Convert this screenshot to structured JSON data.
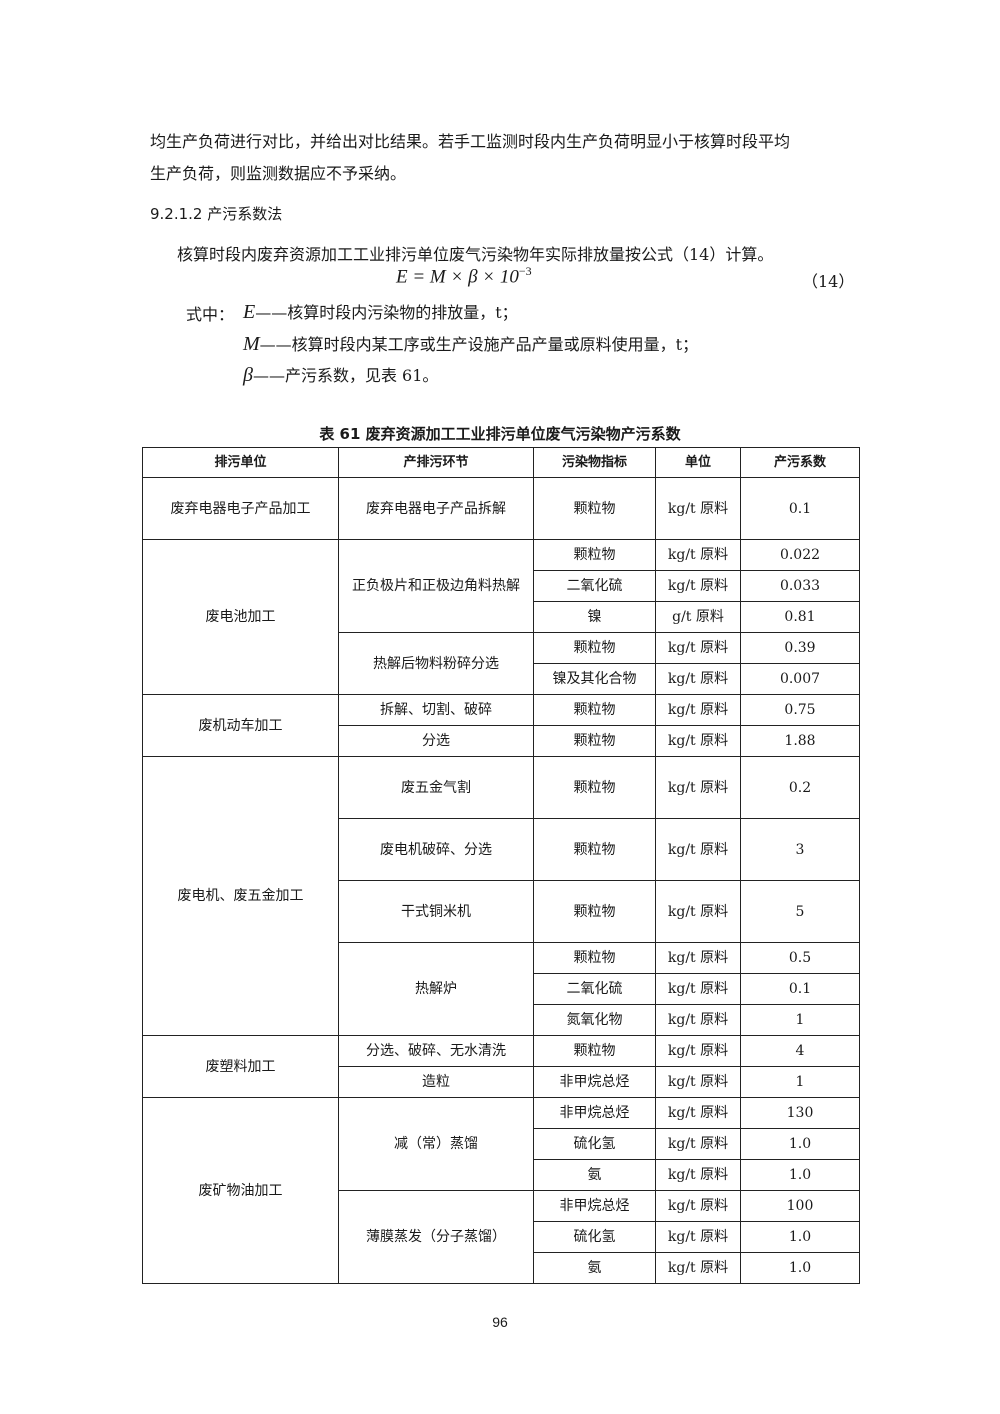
{
  "paragraph1_line1": "均生产负荷进行对比，并给出对比结果。若手工监测时段内生产负荷明显小于核算时段平均",
  "paragraph1_line2": "生产负荷，则监测数据应不予采纳。",
  "section_heading": "9.2.1.2 产污系数法",
  "paragraph2": "核算时段内废弃资源加工工业排污单位废气污染物年实际排放量按公式（14）计算。",
  "formula": {
    "lhs": "E",
    "eq": " = M × β × 10",
    "exp": "−3",
    "number": "（14）"
  },
  "where": {
    "prefix": "式中：",
    "items": [
      {
        "symbol": "E",
        "desc": "——核算时段内污染物的排放量，t；"
      },
      {
        "symbol": "M",
        "desc": "——核算时段内某工序或生产设施产品产量或原料使用量，t；"
      },
      {
        "symbol": "β",
        "desc": "——产污系数，见表 61。"
      }
    ]
  },
  "table": {
    "caption": "表 61  废弃资源加工工业排污单位废气污染物产污系数",
    "headers": [
      "排污单位",
      "产排污环节",
      "污染物指标",
      "单位",
      "产污系数"
    ],
    "groups": [
      {
        "unit": "废弃电器电子产品加工",
        "processes": [
          {
            "name": "废弃电器电子产品拆解",
            "items": [
              [
                "颗粒物",
                "kg/t 原料",
                "0.1"
              ]
            ]
          }
        ]
      },
      {
        "unit": "废电池加工",
        "processes": [
          {
            "name": "正负极片和正极边角料热解",
            "items": [
              [
                "颗粒物",
                "kg/t 原料",
                "0.022"
              ],
              [
                "二氧化硫",
                "kg/t 原料",
                "0.033"
              ],
              [
                "镍",
                "g/t 原料",
                "0.81"
              ]
            ]
          },
          {
            "name": "热解后物料粉碎分选",
            "items": [
              [
                "颗粒物",
                "kg/t 原料",
                "0.39"
              ],
              [
                "镍及其化合物",
                "kg/t 原料",
                "0.007"
              ]
            ]
          }
        ]
      },
      {
        "unit": "废机动车加工",
        "processes": [
          {
            "name": "拆解、切割、破碎",
            "items": [
              [
                "颗粒物",
                "kg/t 原料",
                "0.75"
              ]
            ]
          },
          {
            "name": "分选",
            "items": [
              [
                "颗粒物",
                "kg/t 原料",
                "1.88"
              ]
            ]
          }
        ]
      },
      {
        "unit": "废电机、废五金加工",
        "processes": [
          {
            "name": "废五金气割",
            "items": [
              [
                "颗粒物",
                "kg/t 原料",
                "0.2"
              ]
            ]
          },
          {
            "name": "废电机破碎、分选",
            "items": [
              [
                "颗粒物",
                "kg/t 原料",
                "3"
              ]
            ]
          },
          {
            "name": "干式铜米机",
            "items": [
              [
                "颗粒物",
                "kg/t 原料",
                "5"
              ]
            ]
          },
          {
            "name": "热解炉",
            "items": [
              [
                "颗粒物",
                "kg/t 原料",
                "0.5"
              ],
              [
                "二氧化硫",
                "kg/t 原料",
                "0.1"
              ],
              [
                "氮氧化物",
                "kg/t 原料",
                "1"
              ]
            ]
          }
        ]
      },
      {
        "unit": "废塑料加工",
        "processes": [
          {
            "name": "分选、破碎、无水清洗",
            "items": [
              [
                "颗粒物",
                "kg/t 原料",
                "4"
              ]
            ]
          },
          {
            "name": "造粒",
            "items": [
              [
                "非甲烷总烃",
                "kg/t 原料",
                "1"
              ]
            ]
          }
        ]
      },
      {
        "unit": "废矿物油加工",
        "processes": [
          {
            "name": "减（常）蒸馏",
            "items": [
              [
                "非甲烷总烃",
                "kg/t 原料",
                "130"
              ],
              [
                "硫化氢",
                "kg/t 原料",
                "1.0"
              ],
              [
                "氨",
                "kg/t 原料",
                "1.0"
              ]
            ]
          },
          {
            "name": "薄膜蒸发（分子蒸馏）",
            "items": [
              [
                "非甲烷总烃",
                "kg/t 原料",
                "100"
              ],
              [
                "硫化氢",
                "kg/t 原料",
                "1.0"
              ],
              [
                "氨",
                "kg/t 原料",
                "1.0"
              ]
            ]
          }
        ]
      }
    ]
  },
  "page_number": "96"
}
